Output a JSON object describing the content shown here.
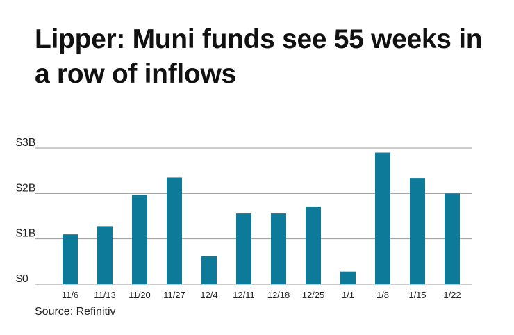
{
  "title": "Lipper: Muni funds see 55 weeks in a row of inflows",
  "source": "Source: Refinitiv",
  "colors": {
    "bar": "#0e7a99",
    "grid": "#9a9a9a"
  },
  "chart_data": {
    "type": "bar",
    "title": "Lipper: Muni funds see 55 weeks in a row of inflows",
    "categories": [
      "11/6",
      "11/13",
      "11/20",
      "11/27",
      "12/4",
      "12/11",
      "12/18",
      "12/25",
      "1/1",
      "1/8",
      "1/15",
      "1/22"
    ],
    "values": [
      1.1,
      1.28,
      1.97,
      2.35,
      0.62,
      1.56,
      1.56,
      1.7,
      0.28,
      2.9,
      2.34,
      2.0
    ],
    "yticks": [
      {
        "value": 0,
        "label": "$0"
      },
      {
        "value": 1,
        "label": "$1B"
      },
      {
        "value": 2,
        "label": "$2B"
      },
      {
        "value": 3,
        "label": "$3B"
      }
    ],
    "ylim": [
      0,
      3
    ],
    "xlabel": "",
    "ylabel": "",
    "grid": true
  }
}
